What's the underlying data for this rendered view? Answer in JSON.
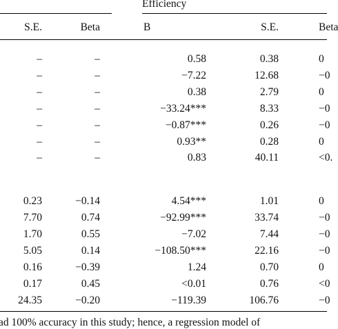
{
  "table": {
    "group_header": "Efficiency",
    "columns": [
      "S.E.",
      "Beta",
      "B",
      "S.E.",
      "Beta"
    ],
    "rows": [
      [
        "–",
        "–",
        "0.58",
        "0.38",
        "0"
      ],
      [
        "–",
        "–",
        "−7.22",
        "12.68",
        "−0"
      ],
      [
        "–",
        "–",
        "0.38",
        "2.79",
        "0"
      ],
      [
        "–",
        "–",
        "−33.24***",
        "8.33",
        "−0"
      ],
      [
        "–",
        "–",
        "−0.87***",
        "0.26",
        "−0"
      ],
      [
        "–",
        "–",
        "0.93**",
        "0.28",
        "0"
      ],
      [
        "–",
        "–",
        "0.83",
        "40.11",
        "<0."
      ],
      [
        "0.23",
        "−0.14",
        "4.54***",
        "1.01",
        "0"
      ],
      [
        "7.70",
        "0.74",
        "−92.99***",
        "33.74",
        "−0"
      ],
      [
        "1.70",
        "0.55",
        "−7.02",
        "7.44",
        "−0"
      ],
      [
        "5.05",
        "0.14",
        "−108.50***",
        "22.16",
        "−0"
      ],
      [
        "0.16",
        "−0.39",
        "1.24",
        "0.70",
        "0"
      ],
      [
        "0.17",
        "0.45",
        "<0.01",
        "0.76",
        "<0"
      ],
      [
        "24.35",
        "−0.20",
        "−119.39",
        "106.76",
        "−0"
      ]
    ],
    "footnote": "ad 100% accuracy in this study; hence, a regression model of"
  }
}
